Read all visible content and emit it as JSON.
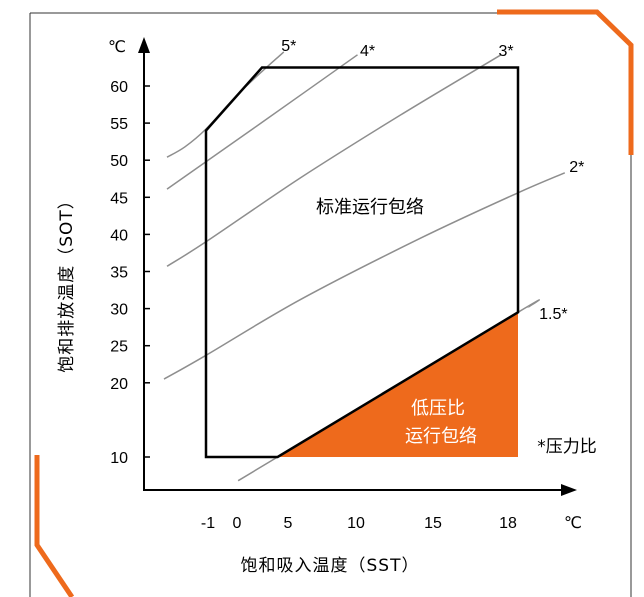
{
  "colors": {
    "accent_orange": "#ee6a1c",
    "region_text": "#ffffff",
    "envelope_stroke": "#000000",
    "ratio_line": "#8e8e8e",
    "frame": "#333333"
  },
  "chart_data": {
    "type": "line",
    "xlabel": "饱和吸入温度（SST）",
    "ylabel": "饱和排放温度（SOT）",
    "x_unit": "℃",
    "y_unit": "℃",
    "x_ticks": [
      -1,
      0,
      5,
      10,
      15,
      18
    ],
    "y_ticks": [
      60,
      55,
      50,
      45,
      40,
      35,
      30,
      25,
      20,
      10
    ],
    "grid": false,
    "legend": "none",
    "series": [
      {
        "name": "5*",
        "points": [
          [
            -2.3,
            50.4
          ],
          [
            -1.7,
            51.8
          ],
          [
            -1,
            54.2
          ],
          [
            0.4,
            59.2
          ],
          [
            4.6,
            64.6
          ]
        ]
      },
      {
        "name": "4*",
        "points": [
          [
            -2.3,
            46.1
          ],
          [
            -1,
            49.8
          ],
          [
            2.5,
            55.1
          ],
          [
            10.1,
            64.2
          ]
        ]
      },
      {
        "name": "3*",
        "points": [
          [
            -2.3,
            35.7
          ],
          [
            -1,
            39.0
          ],
          [
            5.9,
            47.6
          ],
          [
            12.9,
            56.1
          ],
          [
            17.4,
            64.2
          ]
        ]
      },
      {
        "name": "2*",
        "points": [
          [
            -2.4,
            20.5
          ],
          [
            -1,
            23.7
          ],
          [
            5.9,
            31.2
          ],
          [
            14.2,
            39.5
          ],
          [
            18,
            45.6
          ],
          [
            20.7,
            48.3
          ]
        ]
      },
      {
        "name": "1.5*",
        "points": [
          [
            0.2,
            6.8
          ],
          [
            4,
            10
          ],
          [
            18,
            29.5
          ],
          [
            18.6,
            30.2
          ]
        ]
      }
    ],
    "envelope": {
      "name": "标准运行包络",
      "points": [
        [
          -1,
          54
        ],
        [
          2.5,
          62.5
        ],
        [
          18,
          62.5
        ],
        [
          18,
          29.5
        ],
        [
          4,
          10
        ],
        [
          -1,
          10
        ]
      ]
    },
    "low_ratio_region": {
      "label_lines": [
        "低压比",
        "运行包络"
      ],
      "points": [
        [
          4,
          10
        ],
        [
          18,
          29.5
        ],
        [
          18,
          10
        ]
      ]
    },
    "note": "*压力比"
  }
}
